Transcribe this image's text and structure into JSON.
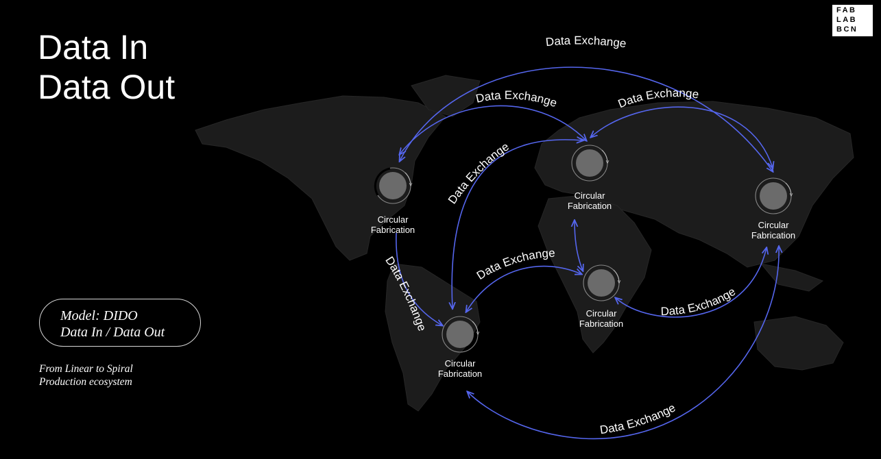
{
  "title": {
    "line1": "Data In",
    "line2": "Data Out"
  },
  "model": {
    "line1": "Model: DIDO",
    "line2": "Data In / Data Out"
  },
  "subtitle": {
    "line1": "From Linear to Spiral",
    "line2": "Production ecosystem"
  },
  "logo": {
    "line1": "FAB",
    "line2": "LAB",
    "line3": "BCN"
  },
  "node_label": {
    "line1": "Circular",
    "line2": "Fabrication"
  },
  "exchange_label": "Data Exchange",
  "colors": {
    "background": "#000000",
    "arrow": "#5566ee",
    "land": "#1c1c1c",
    "node_fill": "#6b6b6b"
  }
}
